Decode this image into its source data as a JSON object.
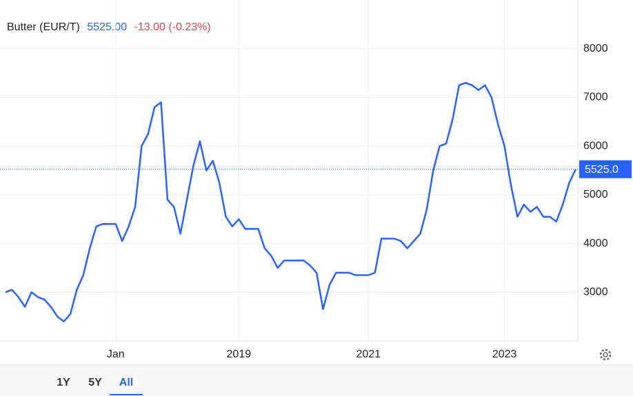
{
  "chart_data": {
    "type": "line",
    "title": "Butter (EUR/T)",
    "price": "5525.00",
    "change": "-13.00 (-0.23%)",
    "categories": [
      null,
      null,
      null,
      null,
      null,
      null,
      null,
      null,
      null,
      null,
      null,
      null,
      null,
      null,
      null,
      null,
      null,
      "Jan",
      null,
      null,
      null,
      null,
      null,
      null,
      null,
      null,
      null,
      null,
      null,
      null,
      null,
      null,
      null,
      null,
      null,
      null,
      "2019",
      null,
      null,
      null,
      null,
      null,
      null,
      null,
      null,
      null,
      null,
      null,
      null,
      null,
      null,
      null,
      null,
      null,
      null,
      null,
      "2021",
      null,
      null,
      null,
      null,
      null,
      null,
      null,
      null,
      null,
      null,
      null,
      null,
      null,
      null,
      null,
      null,
      null,
      null,
      null,
      null,
      "2023",
      null,
      null,
      null,
      null,
      null,
      null,
      null,
      null,
      null,
      null,
      null
    ],
    "series": [
      {
        "name": "Butter",
        "color": "#2962ff",
        "values": [
          3000,
          3050,
          2900,
          2700,
          3000,
          2900,
          2850,
          2700,
          2500,
          2400,
          2550,
          3050,
          3350,
          3900,
          4350,
          4400,
          4400,
          4400,
          4050,
          4350,
          4750,
          6000,
          6250,
          6800,
          6900,
          4900,
          4750,
          4200,
          4900,
          5600,
          6100,
          5500,
          5700,
          5250,
          4550,
          4350,
          4500,
          4300,
          4300,
          4300,
          3900,
          3750,
          3500,
          3650,
          3650,
          3650,
          3650,
          3550,
          3400,
          2650,
          3150,
          3400,
          3400,
          3400,
          3350,
          3350,
          3350,
          3400,
          4100,
          4100,
          4100,
          4050,
          3900,
          4050,
          4200,
          4700,
          5500,
          6000,
          6050,
          6550,
          7250,
          7300,
          7250,
          7150,
          7250,
          7000,
          6450,
          6000,
          5200,
          4550,
          4800,
          4650,
          4750,
          4550,
          4550,
          4450,
          4800,
          5250,
          5525
        ]
      }
    ],
    "last_line": {
      "value": 5525,
      "label": "5525.0"
    },
    "ylim": [
      2000,
      9000
    ],
    "yticks": [
      3000,
      4000,
      5000,
      6000,
      7000,
      8000
    ],
    "grid": true,
    "ranges": [
      "1Y",
      "5Y",
      "All"
    ],
    "active_range": 2
  }
}
